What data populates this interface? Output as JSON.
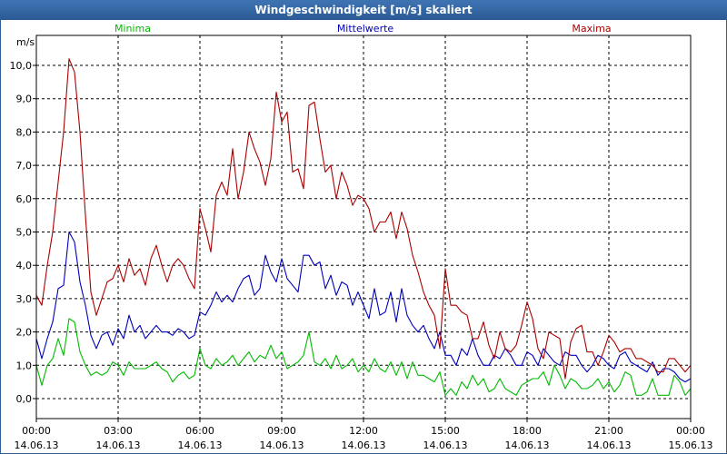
{
  "window": {
    "title": "Windgeschwindigkeit [m/s] skaliert"
  },
  "chart_data": {
    "type": "line",
    "title": "Windgeschwindigkeit [m/s] skaliert",
    "ylabel": "m/s",
    "ylim": [
      -0.6,
      10.9
    ],
    "xlim": [
      0,
      24
    ],
    "grid": true,
    "legend_position": "top",
    "y_ticks": [
      "0,0",
      "1,0",
      "2,0",
      "3,0",
      "4,0",
      "5,0",
      "6,0",
      "7,0",
      "8,0",
      "9,0",
      "10,0"
    ],
    "x_ticks": [
      {
        "time": "00:00",
        "date": "14.06.13"
      },
      {
        "time": "03:00",
        "date": "14.06.13"
      },
      {
        "time": "06:00",
        "date": "14.06.13"
      },
      {
        "time": "09:00",
        "date": "14.06.13"
      },
      {
        "time": "12:00",
        "date": "14.06.13"
      },
      {
        "time": "15:00",
        "date": "14.06.13"
      },
      {
        "time": "18:00",
        "date": "14.06.13"
      },
      {
        "time": "21:00",
        "date": "14.06.13"
      },
      {
        "time": "00:00",
        "date": "15.06.13"
      }
    ],
    "x": [
      0,
      0.2,
      0.4,
      0.6,
      0.8,
      1,
      1.2,
      1.4,
      1.6,
      1.8,
      2,
      2.2,
      2.4,
      2.6,
      2.8,
      3,
      3.2,
      3.4,
      3.6,
      3.8,
      4,
      4.2,
      4.4,
      4.6,
      4.8,
      5,
      5.2,
      5.4,
      5.6,
      5.8,
      6,
      6.2,
      6.4,
      6.6,
      6.8,
      7,
      7.2,
      7.4,
      7.6,
      7.8,
      8,
      8.2,
      8.4,
      8.6,
      8.8,
      9,
      9.2,
      9.4,
      9.6,
      9.8,
      10,
      10.2,
      10.4,
      10.6,
      10.8,
      11,
      11.2,
      11.4,
      11.6,
      11.8,
      12,
      12.2,
      12.4,
      12.6,
      12.8,
      13,
      13.2,
      13.4,
      13.6,
      13.8,
      14,
      14.2,
      14.4,
      14.6,
      14.8,
      15,
      15.2,
      15.4,
      15.6,
      15.8,
      16,
      16.2,
      16.4,
      16.6,
      16.8,
      17,
      17.2,
      17.4,
      17.6,
      17.8,
      18,
      18.2,
      18.4,
      18.6,
      18.8,
      19,
      19.2,
      19.4,
      19.6,
      19.8,
      20,
      20.2,
      20.4,
      20.6,
      20.8,
      21,
      21.2,
      21.4,
      21.6,
      21.8,
      22,
      22.2,
      22.4,
      22.6,
      22.8,
      23,
      23.2,
      23.4,
      23.6,
      23.8,
      24
    ],
    "series": [
      {
        "name": "Minima",
        "color": "#00bb00",
        "values": [
          1.0,
          0.4,
          1.0,
          1.2,
          1.8,
          1.3,
          2.4,
          2.3,
          1.4,
          1.0,
          0.7,
          0.8,
          0.7,
          0.8,
          1.1,
          1.0,
          0.7,
          1.1,
          0.9,
          0.9,
          0.9,
          1.0,
          1.1,
          0.9,
          0.8,
          0.5,
          0.7,
          0.8,
          0.6,
          0.7,
          1.5,
          1.0,
          0.9,
          1.2,
          1.0,
          1.1,
          1.3,
          1.0,
          1.2,
          1.4,
          1.1,
          1.3,
          1.2,
          1.6,
          1.2,
          1.4,
          0.9,
          1.0,
          1.1,
          1.3,
          2.0,
          1.1,
          1.0,
          1.2,
          0.9,
          1.3,
          0.9,
          1.0,
          1.2,
          0.8,
          1.0,
          0.8,
          1.2,
          0.9,
          0.8,
          1.1,
          0.7,
          1.1,
          0.6,
          1.1,
          0.7,
          0.7,
          0.6,
          0.5,
          0.8,
          0.1,
          0.3,
          0.1,
          0.5,
          0.3,
          0.7,
          0.4,
          0.6,
          0.2,
          0.3,
          0.6,
          0.3,
          0.2,
          0.1,
          0.4,
          0.5,
          0.6,
          0.6,
          0.8,
          0.4,
          1.0,
          0.7,
          0.3,
          0.6,
          0.5,
          0.3,
          0.3,
          0.4,
          0.6,
          0.3,
          0.5,
          0.2,
          0.4,
          0.8,
          0.7,
          0.1,
          0.1,
          0.2,
          0.6,
          0.1,
          0.1,
          0.1,
          0.7,
          0.5,
          0.1,
          0.3
        ]
      },
      {
        "name": "Mittelwerte",
        "color": "#0000bb",
        "values": [
          1.8,
          1.2,
          1.8,
          2.3,
          3.3,
          3.4,
          5.0,
          4.7,
          3.5,
          2.8,
          1.9,
          1.5,
          1.9,
          2.0,
          1.6,
          2.1,
          1.8,
          2.5,
          2.0,
          2.2,
          1.8,
          2.0,
          2.2,
          2.0,
          2.0,
          1.9,
          2.1,
          2.0,
          1.8,
          1.9,
          2.6,
          2.5,
          2.8,
          3.2,
          2.9,
          3.1,
          2.9,
          3.3,
          3.6,
          3.7,
          3.1,
          3.3,
          4.3,
          3.8,
          3.5,
          4.2,
          3.6,
          3.4,
          3.2,
          4.3,
          4.3,
          4.0,
          4.1,
          3.3,
          3.7,
          3.1,
          3.5,
          3.4,
          2.8,
          3.2,
          2.8,
          2.4,
          3.3,
          2.5,
          2.6,
          3.2,
          2.3,
          3.3,
          2.5,
          2.2,
          2.0,
          2.2,
          1.8,
          1.5,
          2.0,
          1.3,
          1.3,
          1.0,
          1.5,
          1.3,
          1.8,
          1.3,
          1.0,
          1.0,
          1.3,
          1.2,
          1.5,
          1.3,
          1.0,
          1.0,
          1.4,
          1.3,
          1.0,
          1.5,
          1.3,
          1.1,
          1.0,
          1.4,
          1.3,
          1.3,
          1.0,
          0.8,
          1.0,
          1.3,
          1.2,
          1.0,
          0.9,
          1.3,
          1.4,
          1.1,
          1.0,
          0.9,
          0.8,
          1.1,
          0.7,
          0.9,
          0.9,
          0.8,
          0.6,
          0.5,
          0.6
        ]
      },
      {
        "name": "Maxima",
        "color": "#aa0000",
        "values": [
          3.1,
          2.8,
          4.0,
          5.0,
          6.5,
          8.0,
          10.2,
          9.8,
          8.0,
          5.5,
          3.2,
          2.5,
          3.0,
          3.5,
          3.6,
          4.0,
          3.5,
          4.2,
          3.7,
          3.9,
          3.4,
          4.2,
          4.6,
          4.0,
          3.5,
          4.0,
          4.2,
          4.0,
          3.6,
          3.3,
          5.7,
          5.1,
          4.4,
          6.1,
          6.5,
          6.1,
          7.5,
          6.0,
          6.8,
          8.0,
          7.5,
          7.1,
          6.4,
          7.2,
          9.2,
          8.3,
          8.6,
          6.8,
          6.9,
          6.3,
          8.8,
          8.9,
          7.8,
          6.8,
          7.0,
          6.0,
          6.8,
          6.4,
          5.8,
          6.1,
          6.0,
          5.7,
          5.0,
          5.3,
          5.3,
          5.6,
          4.8,
          5.6,
          5.1,
          4.3,
          3.8,
          3.2,
          2.8,
          2.5,
          1.5,
          3.9,
          2.8,
          2.8,
          2.6,
          2.5,
          1.8,
          1.8,
          2.3,
          1.6,
          1.2,
          2.0,
          1.5,
          1.4,
          1.6,
          2.2,
          2.9,
          2.4,
          1.5,
          1.2,
          2.0,
          1.9,
          1.8,
          0.6,
          1.7,
          2.1,
          2.2,
          1.4,
          1.4,
          1.0,
          1.4,
          1.9,
          1.7,
          1.4,
          1.5,
          1.5,
          1.2,
          1.2,
          1.1,
          1.0,
          0.8,
          0.8,
          1.2,
          1.2,
          1.0,
          0.8,
          1.0
        ]
      }
    ]
  }
}
